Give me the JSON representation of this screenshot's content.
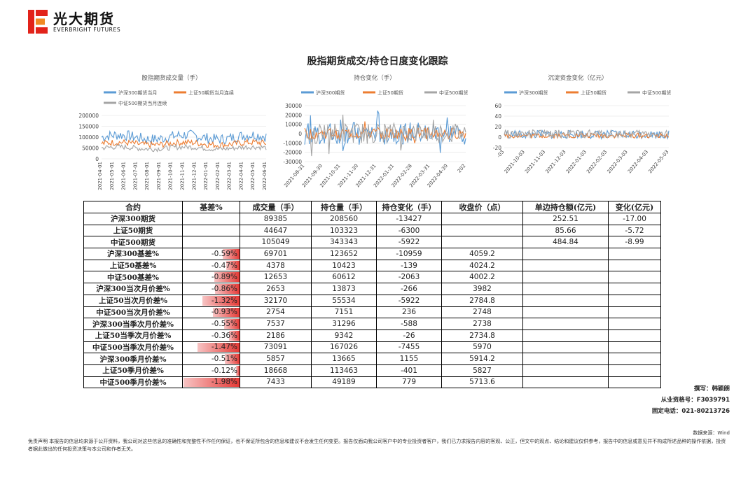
{
  "brand": {
    "cn": "光大期货",
    "en": "EVERBRIGHT FUTURES",
    "colors": {
      "red": "#e2231a",
      "orange": "#f08a24"
    }
  },
  "title": "股指期货成交/持仓日度变化跟踪",
  "charts": [
    {
      "id": "volume",
      "title": "股指期货成交量（手）",
      "legend": [
        "沪深300期货当月",
        "上证50期货当月连续",
        "中证500期货当月连续"
      ],
      "yticks": [
        "200000",
        "150000",
        "100000",
        "50000",
        "0"
      ],
      "xticks": [
        "2021-04-01",
        "2021-05-01",
        "2021-06-01",
        "2021-07-01",
        "2021-08-01",
        "2021-09-01",
        "2021-10-01",
        "2021-11-01",
        "2021-12-01",
        "2022-01-01",
        "2022-02-01",
        "2022-03-01",
        "2022-04-01",
        "2022-05-01",
        "2022-06-01"
      ]
    },
    {
      "id": "oi",
      "title": "持仓变化（手）",
      "legend": [
        "沪深300期货",
        "上证50期货",
        "中证500期货"
      ],
      "yticks": [
        "30000",
        "20000",
        "10000",
        "0",
        "-10000",
        "-20000",
        "-30000"
      ],
      "xticks": [
        "2021-08-31",
        "2021-09-30",
        "2021-10-31",
        "2021-11-30",
        "2021-12-31",
        "2022-01-31",
        "2022-02-28",
        "2022-03-31",
        "2022-04-30",
        "202"
      ]
    },
    {
      "id": "fund",
      "title": "沉淀资金变化（亿元）",
      "legend": [
        "沪深300期货",
        "上证50期货",
        "中证500期货"
      ],
      "yticks": [
        "60",
        "40",
        "20",
        "0",
        "-20"
      ],
      "xticks": [
        "-03",
        "2021-10-03",
        "2021-11-03",
        "2021-12-03",
        "2022-01-03",
        "2022-02-03",
        "2022-03-03",
        "2022-04-03",
        "2022-05-03"
      ]
    }
  ],
  "series_colors": [
    "#5b9bd5",
    "#ed7d31",
    "#a5a5a5"
  ],
  "table": {
    "headers": [
      "合约",
      "基差%",
      "成交量（手）",
      "持仓量（手）",
      "持仓变化（手）",
      "收盘价（点）",
      "单边持仓额(亿元)",
      "变化(亿元)"
    ],
    "rows": [
      {
        "name": "沪深300期货",
        "basis": "",
        "basis_pct": 0,
        "vol": "89385",
        "oi": "208560",
        "chg": "-13427",
        "close": "",
        "amt": "252.51",
        "amt_chg": "-17.00"
      },
      {
        "name": "上证50期货",
        "basis": "",
        "basis_pct": 0,
        "vol": "44647",
        "oi": "103323",
        "chg": "-6300",
        "close": "",
        "amt": "85.66",
        "amt_chg": "-5.72"
      },
      {
        "name": "中证500期货",
        "basis": "",
        "basis_pct": 0,
        "vol": "105049",
        "oi": "343343",
        "chg": "-5922",
        "close": "",
        "amt": "484.84",
        "amt_chg": "-8.99"
      },
      {
        "name": "沪深300基差%",
        "basis": "-0.59%",
        "basis_pct": -0.59,
        "vol": "69701",
        "oi": "123652",
        "chg": "-10959",
        "close": "4059.2",
        "amt": "",
        "amt_chg": ""
      },
      {
        "name": "上证50基差%",
        "basis": "-0.47%",
        "basis_pct": -0.47,
        "vol": "4378",
        "oi": "10423",
        "chg": "-139",
        "close": "4024.2",
        "amt": "",
        "amt_chg": ""
      },
      {
        "name": "中证500基差%",
        "basis": "-0.89%",
        "basis_pct": -0.89,
        "vol": "12653",
        "oi": "60612",
        "chg": "-2063",
        "close": "4002.2",
        "amt": "",
        "amt_chg": ""
      },
      {
        "name": "沪深300当次月价差%",
        "basis": "-0.86%",
        "basis_pct": -0.86,
        "vol": "2653",
        "oi": "13873",
        "chg": "-266",
        "close": "3982",
        "amt": "",
        "amt_chg": ""
      },
      {
        "name": "上证50当次月价差%",
        "basis": "-1.32%",
        "basis_pct": -1.32,
        "vol": "32170",
        "oi": "55534",
        "chg": "-5922",
        "close": "2784.8",
        "amt": "",
        "amt_chg": ""
      },
      {
        "name": "中证500当次月价差%",
        "basis": "-0.93%",
        "basis_pct": -0.93,
        "vol": "2754",
        "oi": "7151",
        "chg": "236",
        "close": "2748",
        "amt": "",
        "amt_chg": ""
      },
      {
        "name": "沪深300当季次月价差%",
        "basis": "-0.55%",
        "basis_pct": -0.55,
        "vol": "7537",
        "oi": "31296",
        "chg": "-588",
        "close": "2738",
        "amt": "",
        "amt_chg": ""
      },
      {
        "name": "上证50当季次月价差%",
        "basis": "-0.36%",
        "basis_pct": -0.36,
        "vol": "2186",
        "oi": "9342",
        "chg": "-26",
        "close": "2734.8",
        "amt": "",
        "amt_chg": ""
      },
      {
        "name": "中证500当季次月价差%",
        "basis": "-1.47%",
        "basis_pct": -1.47,
        "vol": "73091",
        "oi": "167026",
        "chg": "-7455",
        "close": "5970",
        "amt": "",
        "amt_chg": ""
      },
      {
        "name": "沪深300季月价差%",
        "basis": "-0.51%",
        "basis_pct": -0.51,
        "vol": "5857",
        "oi": "13665",
        "chg": "1155",
        "close": "5914.2",
        "amt": "",
        "amt_chg": ""
      },
      {
        "name": "上证50季月价差%",
        "basis": "-0.12%",
        "basis_pct": -0.12,
        "vol": "18668",
        "oi": "113463",
        "chg": "-401",
        "close": "5827",
        "amt": "",
        "amt_chg": ""
      },
      {
        "name": "中证500季月价差%",
        "basis": "-1.98%",
        "basis_pct": -1.98,
        "vol": "7433",
        "oi": "49189",
        "chg": "779",
        "close": "5713.6",
        "amt": "",
        "amt_chg": ""
      }
    ]
  },
  "author": {
    "line1": "撰写：韩颖朗",
    "line2": "从业资格号：F3039791",
    "line3": "固定电话：021-80213726"
  },
  "source": "数据来源：Wind",
  "disclaimer": "免责声明    本报告的信息均来源于公开资料，我公司对这些信息的准确性和完整性不作任何保证，也不保证所包含的信息和建议不会发生任何变更。报告仅面向我公司客户中的专业投资者客户，我们已力求报告内容的客观、公正，但文中的观点、结论和建议仅供参考，报告中的信息或意见并不构成所述品种的操作依据，投资者据此做出的任何投资决策与本公司和作者无关。"
}
